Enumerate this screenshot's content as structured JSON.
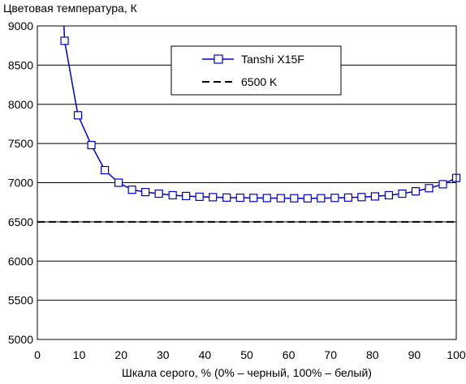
{
  "chart_data": {
    "type": "line",
    "ylabel": "Цветовая температура, К",
    "xlabel": "Шкала серого, % (0% – черный, 100% – белый)",
    "xlim": [
      0,
      100
    ],
    "ylim": [
      5000,
      9000
    ],
    "xticks": [
      "0",
      "10",
      "20",
      "30",
      "40",
      "50",
      "60",
      "70",
      "80",
      "90",
      "100"
    ],
    "yticks": [
      "5000",
      "5500",
      "6000",
      "6500",
      "7000",
      "7500",
      "8000",
      "8500",
      "9000"
    ],
    "grid": "horizontal",
    "legend_position": "top-right",
    "series": [
      {
        "name": "Tanshi X15F",
        "color": "#0000cc",
        "marker": "square",
        "x": [
          6.5,
          9.7,
          12.9,
          16.1,
          19.4,
          22.6,
          25.8,
          29.0,
          32.3,
          35.5,
          38.7,
          41.9,
          45.2,
          48.4,
          51.6,
          54.8,
          58.1,
          61.3,
          64.5,
          67.7,
          71.0,
          74.2,
          77.4,
          80.6,
          83.9,
          87.1,
          90.3,
          93.5,
          96.8,
          100
        ],
        "values": [
          8810,
          7860,
          7480,
          7160,
          7000,
          6910,
          6880,
          6860,
          6840,
          6830,
          6820,
          6815,
          6810,
          6808,
          6806,
          6804,
          6802,
          6801,
          6800,
          6802,
          6806,
          6810,
          6816,
          6825,
          6840,
          6860,
          6890,
          6930,
          6980,
          7060
        ]
      },
      {
        "name": "6500 K",
        "color": "#000000",
        "style": "dashed",
        "x": [
          0,
          100
        ],
        "values": [
          6500,
          6500
        ]
      }
    ]
  }
}
